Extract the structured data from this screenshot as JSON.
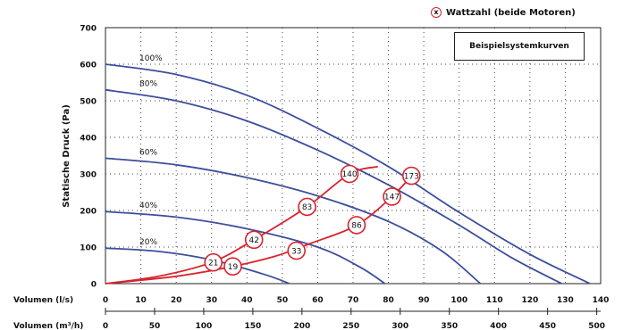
{
  "legend": {
    "marker_symbol": "x",
    "wattage_label": "Wattzahl (beide Motoren)",
    "box_label": "Beispielsystemkurven"
  },
  "colors": {
    "fan_curve": "#3c4e9c",
    "system_curve": "#d9232e",
    "marker_border": "#d9232e"
  },
  "chart_data": {
    "type": "line",
    "xlabel": "Volumen (l/s)",
    "x2label": "Volumen (m³/h)",
    "ylabel": "Statische Druck (Pa)",
    "xlim": [
      0,
      140
    ],
    "ylim": [
      0,
      700
    ],
    "x_ticks": [
      0,
      10,
      20,
      30,
      40,
      50,
      60,
      70,
      80,
      90,
      100,
      110,
      120,
      130,
      140
    ],
    "x2_ticks": [
      0,
      50,
      100,
      150,
      200,
      250,
      300,
      350,
      400,
      450,
      500
    ],
    "y_ticks": [
      0,
      100,
      200,
      300,
      400,
      500,
      600,
      700
    ],
    "grid": true,
    "fan_curves": [
      {
        "name": "100%",
        "points": [
          [
            0,
            600
          ],
          [
            20,
            572
          ],
          [
            40,
            515
          ],
          [
            60,
            425
          ],
          [
            80,
            320
          ],
          [
            100,
            195
          ],
          [
            120,
            80
          ],
          [
            137,
            0
          ]
        ]
      },
      {
        "name": "80%",
        "points": [
          [
            0,
            530
          ],
          [
            20,
            500
          ],
          [
            40,
            445
          ],
          [
            60,
            365
          ],
          [
            80,
            270
          ],
          [
            100,
            160
          ],
          [
            115,
            70
          ],
          [
            129,
            0
          ]
        ]
      },
      {
        "name": "60%",
        "points": [
          [
            0,
            343
          ],
          [
            20,
            325
          ],
          [
            40,
            290
          ],
          [
            60,
            240
          ],
          [
            80,
            170
          ],
          [
            95,
            90
          ],
          [
            106,
            0
          ]
        ]
      },
      {
        "name": "40%",
        "points": [
          [
            0,
            197
          ],
          [
            20,
            182
          ],
          [
            40,
            150
          ],
          [
            60,
            100
          ],
          [
            72,
            45
          ],
          [
            79,
            0
          ]
        ]
      },
      {
        "name": "20%",
        "points": [
          [
            0,
            97
          ],
          [
            15,
            88
          ],
          [
            30,
            65
          ],
          [
            45,
            25
          ],
          [
            52,
            0
          ]
        ]
      }
    ],
    "system_curves": [
      {
        "points": [
          [
            0,
            0
          ],
          [
            15,
            20
          ],
          [
            30,
            58
          ],
          [
            42,
            120
          ],
          [
            57,
            210
          ],
          [
            69,
            300
          ],
          [
            77,
            320
          ]
        ]
      },
      {
        "points": [
          [
            0,
            0
          ],
          [
            20,
            20
          ],
          [
            36,
            47
          ],
          [
            48,
            75
          ],
          [
            58,
            110
          ],
          [
            71,
            160
          ],
          [
            81,
            238
          ],
          [
            87,
            300
          ]
        ]
      }
    ],
    "wattage_markers": [
      {
        "label": "21",
        "x": 30.5,
        "y": 58
      },
      {
        "label": "42",
        "x": 42,
        "y": 120
      },
      {
        "label": "83",
        "x": 57,
        "y": 210
      },
      {
        "label": "140",
        "x": 69,
        "y": 300
      },
      {
        "label": "173",
        "x": 86.5,
        "y": 295
      },
      {
        "label": "19",
        "x": 36,
        "y": 47
      },
      {
        "label": "33",
        "x": 54,
        "y": 90
      },
      {
        "label": "86",
        "x": 71,
        "y": 160
      },
      {
        "label": "147",
        "x": 81,
        "y": 238
      }
    ]
  }
}
